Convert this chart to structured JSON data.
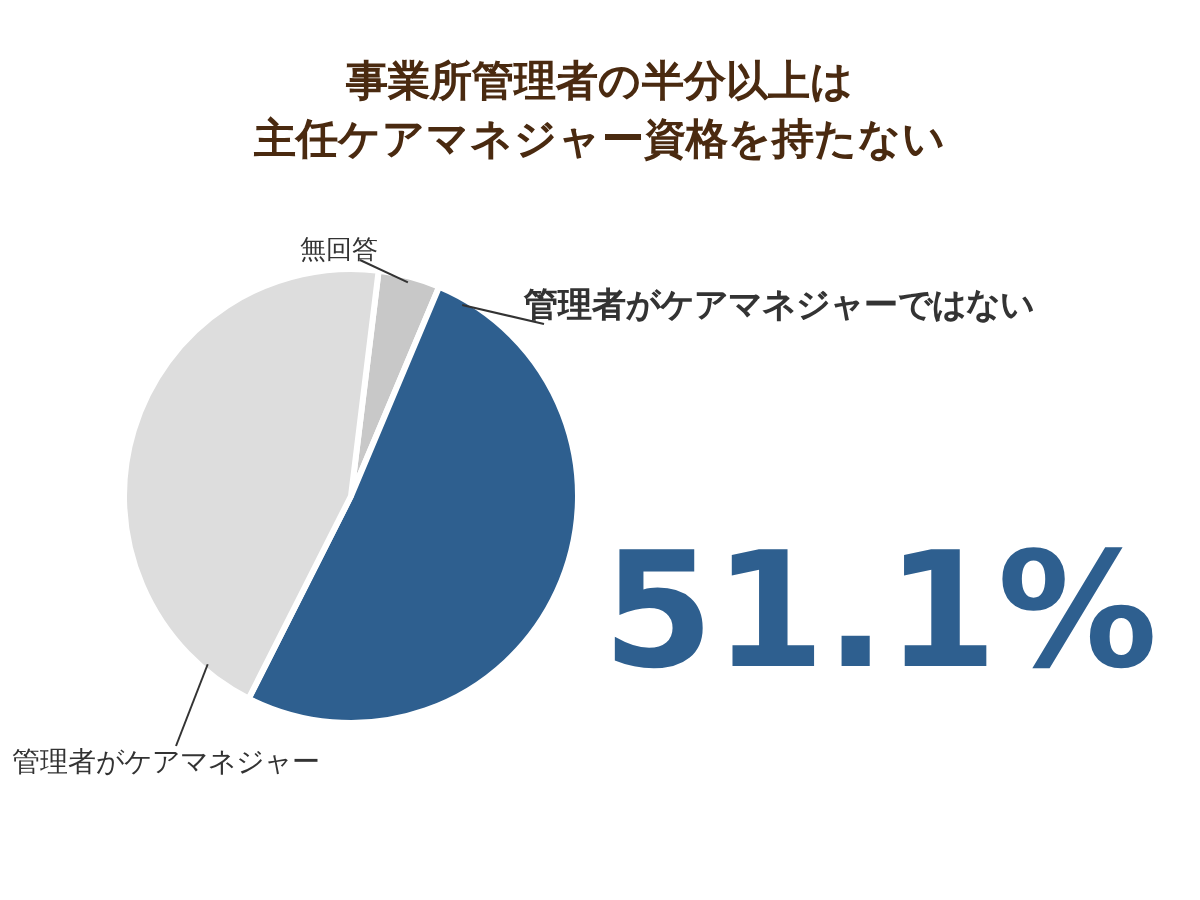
{
  "chart_data": {
    "type": "pie",
    "title": "事業所管理者の半分以上は主任ケアマネジャー資格を持たない",
    "categories": [
      "無回答",
      "管理者がケアマネジャーではない",
      "管理者がケアマネジャー"
    ],
    "values": [
      4.4,
      51.1,
      44.5
    ],
    "colors": [
      "#c8c8c8",
      "#2e5f8f",
      "#dddddd"
    ],
    "value_labels": [
      null,
      "51.1%",
      null
    ],
    "legend": false
  }
}
